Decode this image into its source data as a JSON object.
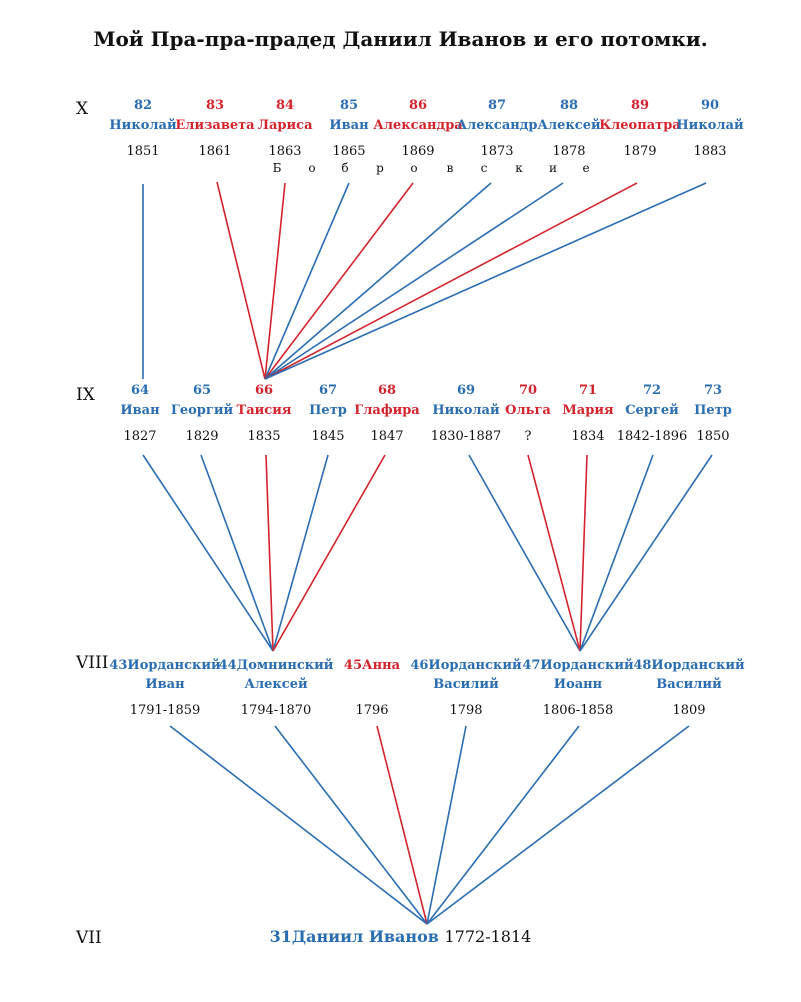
{
  "title": "Мой Пра-пра-прадед Даниил Иванов и его потомки.",
  "colors": {
    "male": "#2a6db0",
    "female": "#d3242e"
  },
  "generations": {
    "X": "X",
    "IX": "IX",
    "VIII": "VIII",
    "VII": "VII"
  },
  "gen_x": [
    {
      "num": "82",
      "name": "Николай",
      "year": "1851",
      "color": "blue"
    },
    {
      "num": "83",
      "name": "Елизавета",
      "year": "1861",
      "color": "red"
    },
    {
      "num": "84",
      "name": "Лариса",
      "year": "1863",
      "color": "red"
    },
    {
      "num": "85",
      "name": "Иван",
      "year": "1865",
      "color": "blue"
    },
    {
      "num": "86",
      "name": "Александра",
      "year": "1869",
      "color": "red"
    },
    {
      "num": "87",
      "name": "Александр",
      "year": "1873",
      "color": "blue"
    },
    {
      "num": "88",
      "name": "Алексей",
      "year": "1878",
      "color": "blue"
    },
    {
      "num": "89",
      "name": "Клеопатра",
      "year": "1879",
      "color": "red"
    },
    {
      "num": "90",
      "name": "Николай",
      "year": "1883",
      "color": "blue"
    }
  ],
  "surname_letters": [
    "Б",
    "о",
    "б",
    "р",
    "о",
    "в",
    "с",
    "к",
    "и",
    "е"
  ],
  "gen_ix": [
    {
      "num": "64",
      "name": "Иван",
      "year": "1827",
      "color": "blue"
    },
    {
      "num": "65",
      "name": "Георгий",
      "year": "1829",
      "color": "blue"
    },
    {
      "num": "66",
      "name": "Таисия",
      "year": "1835",
      "color": "red"
    },
    {
      "num": "67",
      "name": "Петр",
      "year": "1845",
      "color": "blue"
    },
    {
      "num": "68",
      "name": "Глафира",
      "year": "1847",
      "color": "red"
    },
    {
      "num": "69",
      "name": "Николай",
      "year": "1830-1887",
      "color": "blue"
    },
    {
      "num": "70",
      "name": "Ольга",
      "year": "?",
      "color": "red"
    },
    {
      "num": "71",
      "name": "Мария",
      "year": "1834",
      "color": "red"
    },
    {
      "num": "72",
      "name": "Сергей",
      "year": "1842-1896",
      "color": "blue"
    },
    {
      "num": "73",
      "name": "Петр",
      "year": "1850",
      "color": "blue"
    }
  ],
  "gen_viii": [
    {
      "line1": "43Иорданский",
      "line2": "Иван",
      "year": "1791-1859",
      "color": "blue"
    },
    {
      "line1": "44Домнинский",
      "line2": "Алексей",
      "year": "1794-1870",
      "color": "blue"
    },
    {
      "line1": "45Анна",
      "line2": "",
      "year": "1796",
      "color": "red"
    },
    {
      "line1": "46Иорданский",
      "line2": "Василий",
      "year": "1798",
      "color": "blue"
    },
    {
      "line1": "47Иорданский",
      "line2": "Иоанн",
      "year": "1806-1858",
      "color": "blue"
    },
    {
      "line1": "48Иорданский",
      "line2": "Василий",
      "year": "1809",
      "color": "blue"
    }
  ],
  "root": {
    "name": "31Даниил Иванов",
    "years": "1772-1814"
  },
  "edges": {
    "x_to_ix": [
      {
        "child": 0,
        "parent": 0
      },
      {
        "child": 1,
        "parent": 2
      },
      {
        "child": 2,
        "parent": 2
      },
      {
        "child": 3,
        "parent": 2
      },
      {
        "child": 4,
        "parent": 2
      },
      {
        "child": 5,
        "parent": 2
      },
      {
        "child": 6,
        "parent": 2
      },
      {
        "child": 7,
        "parent": 2
      },
      {
        "child": 8,
        "parent": 2
      }
    ],
    "ix_to_viii": [
      {
        "child": 0,
        "parent": 1
      },
      {
        "child": 1,
        "parent": 1
      },
      {
        "child": 2,
        "parent": 1
      },
      {
        "child": 3,
        "parent": 1
      },
      {
        "child": 4,
        "parent": 1
      },
      {
        "child": 5,
        "parent": 4
      },
      {
        "child": 6,
        "parent": 4
      },
      {
        "child": 7,
        "parent": 4
      },
      {
        "child": 8,
        "parent": 4
      },
      {
        "child": 9,
        "parent": 4
      }
    ]
  }
}
